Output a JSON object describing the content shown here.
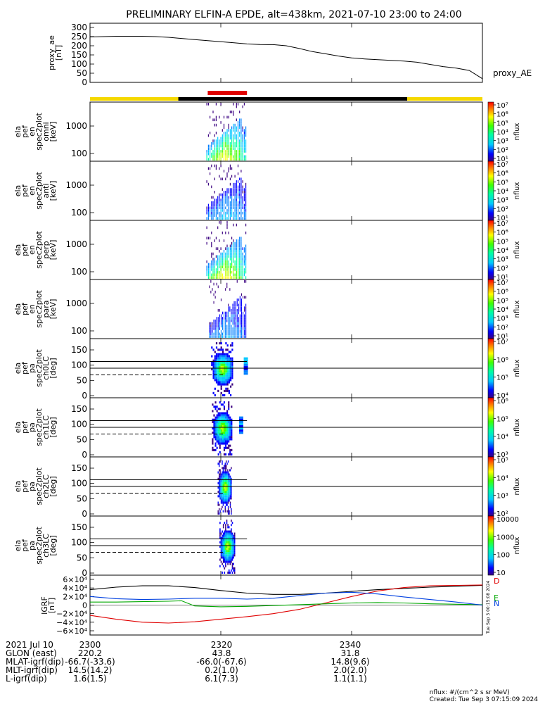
{
  "chart_data": {
    "type": "heatmap",
    "title": "PRELIMINARY ELFIN-A EPDE, alt=438km, 2021-07-10 23:00 to 24:00",
    "x_time_range_minutes": [
      0,
      60
    ],
    "xticks": [
      "2300",
      "2320",
      "2340"
    ],
    "xtick_minutes": [
      0,
      20,
      40
    ],
    "ae_panel": {
      "ylabel_lines": [
        "proxy_ae",
        "[nT]"
      ],
      "yticks": [
        0,
        50,
        100,
        150,
        200,
        250,
        300
      ],
      "ylim": [
        0,
        300
      ],
      "legend": "proxy_AE",
      "series_t": [
        0,
        2,
        4,
        6,
        8,
        10,
        12,
        14,
        16,
        18,
        20,
        22,
        24,
        26,
        28,
        30,
        32,
        34,
        36,
        38,
        40,
        42,
        44,
        46,
        48,
        50,
        52,
        54,
        56,
        58,
        60
      ],
      "series_v": [
        248,
        250,
        252,
        252,
        252,
        250,
        246,
        240,
        234,
        228,
        222,
        216,
        210,
        207,
        206,
        200,
        185,
        168,
        156,
        144,
        134,
        128,
        124,
        120,
        116,
        110,
        98,
        86,
        78,
        65,
        20
      ]
    },
    "status_bar": [
      {
        "from": 0,
        "to": 13.5,
        "color": "#f5d800"
      },
      {
        "from": 13.5,
        "to": 48.5,
        "color": "#000000"
      },
      {
        "from": 48.5,
        "to": 60,
        "color": "#f5d800"
      }
    ],
    "science_zone": {
      "from": 18,
      "to": 24,
      "color": "#e00000"
    },
    "energy_panels": [
      {
        "lines": [
          "ela",
          "pef",
          "en",
          "spec2plot",
          "omni",
          "[keV]"
        ],
        "yticks": [
          "1000",
          "100"
        ],
        "cb_ticks": [
          "10⁷",
          "10⁶",
          "10⁵",
          "10⁴",
          "10³",
          "10²",
          "10¹"
        ],
        "cb_label": "nflux",
        "t_from": 17.8,
        "t_to": 24,
        "peak": 1.0
      },
      {
        "lines": [
          "ela",
          "pef",
          "en",
          "spec2plot",
          "anti",
          "[keV]"
        ],
        "yticks": [
          "1000",
          "100"
        ],
        "cb_ticks": [
          "10⁷",
          "10⁶",
          "10⁵",
          "10⁴",
          "10³",
          "10²",
          "10¹"
        ],
        "cb_label": "nflux",
        "t_from": 17.8,
        "t_to": 24,
        "peak": 0.45
      },
      {
        "lines": [
          "ela",
          "pef",
          "en",
          "spec2plot",
          "perp",
          "[keV]"
        ],
        "yticks": [
          "1000",
          "100"
        ],
        "cb_ticks": [
          "10⁷",
          "10⁶",
          "10⁵",
          "10⁴",
          "10³",
          "10²",
          "10¹"
        ],
        "cb_label": "nflux",
        "t_from": 17.8,
        "t_to": 24,
        "peak": 1.0
      },
      {
        "lines": [
          "ela",
          "pef",
          "en",
          "spec2plot",
          "para",
          "[keV]"
        ],
        "yticks": [
          "1000",
          "100"
        ],
        "cb_ticks": [
          "10⁷",
          "10⁶",
          "10⁵",
          "10⁴",
          "10³",
          "10²",
          "10¹"
        ],
        "cb_label": "nflux",
        "t_from": 18.2,
        "t_to": 24,
        "peak": 0.4
      }
    ],
    "pa_panels": [
      {
        "lines": [
          "ela",
          "pef",
          "pa",
          "spec2plot",
          "ch0LC",
          "[deg]"
        ],
        "yticks": [
          "150",
          "100",
          "50",
          "0"
        ],
        "cb_ticks": [
          "10⁷",
          "10⁶",
          "10⁵",
          "10⁴"
        ],
        "cb_label": "nflux",
        "center_t": 20.2,
        "width_t": 1.4,
        "extra_t": 23.5
      },
      {
        "lines": [
          "ela",
          "pef",
          "pa",
          "spec2plot",
          "ch1LC",
          "[deg]"
        ],
        "yticks": [
          "150",
          "100",
          "50",
          "0"
        ],
        "cb_ticks": [
          "10⁶",
          "10⁵",
          "10⁴",
          "10³"
        ],
        "cb_label": "nflux",
        "center_t": 20.2,
        "width_t": 1.3,
        "extra_t": 22.8
      },
      {
        "lines": [
          "ela",
          "pef",
          "pa",
          "spec2plot",
          "ch2LC",
          "[deg]"
        ],
        "yticks": [
          "150",
          "100",
          "50",
          "0"
        ],
        "cb_ticks": [
          "10⁵",
          "10⁴",
          "10³",
          "10²"
        ],
        "cb_label": "nflux",
        "center_t": 20.6,
        "width_t": 0.9,
        "extra_t": 0
      },
      {
        "lines": [
          "ela",
          "pef",
          "pa",
          "spec2plot",
          "ch3LC",
          "[deg]"
        ],
        "yticks": [
          "150",
          "100",
          "50",
          "0"
        ],
        "cb_ticks": [
          "10000",
          "1000",
          "100",
          "10"
        ],
        "cb_label": "nflux",
        "center_t": 21.0,
        "width_t": 1.0,
        "extra_t": 0
      }
    ],
    "igrf_panel": {
      "ylabel_lines": [
        "IGRF",
        "[nT]"
      ],
      "yticks": [
        "6×10⁴",
        "4×10⁴",
        "2×10⁴",
        "0",
        "−2×10⁴",
        "−4×10⁴",
        "−6×10⁴"
      ],
      "ylim": [
        -60000,
        60000
      ],
      "legend": [
        "D",
        "E",
        "N"
      ],
      "side_note": "Tue Sep  3 00:15:08 2024",
      "series": [
        {
          "name": "total",
          "color": "#000000",
          "t": [
            0,
            4,
            8,
            12,
            16,
            20,
            24,
            28,
            32,
            36,
            40,
            44,
            48,
            52,
            56,
            60
          ],
          "v": [
            36000,
            42000,
            45000,
            45000,
            41000,
            34000,
            28000,
            25000,
            25000,
            28000,
            32000,
            36000,
            39000,
            42000,
            44000,
            46000
          ]
        },
        {
          "name": "D",
          "color": "#e00000",
          "t": [
            0,
            4,
            8,
            12,
            16,
            20,
            24,
            28,
            32,
            36,
            40,
            44,
            48,
            52,
            56,
            60
          ],
          "v": [
            -24000,
            -33000,
            -40000,
            -42000,
            -39000,
            -33000,
            -27000,
            -20000,
            -10000,
            5000,
            20000,
            33000,
            41000,
            45000,
            46000,
            47000
          ]
        },
        {
          "name": "E",
          "color": "#00a800",
          "t": [
            0,
            4,
            8,
            12,
            14,
            16,
            20,
            24,
            28,
            32,
            36,
            40,
            44,
            48,
            52,
            56,
            60
          ],
          "v": [
            7000,
            7000,
            8000,
            9000,
            10000,
            -2000,
            -4000,
            -3000,
            -1000,
            1000,
            3000,
            5000,
            6000,
            5000,
            3000,
            2000,
            1000
          ]
        },
        {
          "name": "N",
          "color": "#0040e0",
          "t": [
            0,
            4,
            8,
            12,
            16,
            20,
            24,
            28,
            32,
            36,
            40,
            44,
            48,
            52,
            56,
            60
          ],
          "v": [
            20000,
            15000,
            13000,
            14000,
            16000,
            16000,
            14000,
            16000,
            22000,
            28000,
            30000,
            26000,
            19000,
            13000,
            7000,
            0
          ]
        }
      ]
    },
    "footer": {
      "rows": [
        {
          "label": "2021 Jul 10",
          "cols": [
            "2300",
            "2320",
            "2340"
          ]
        },
        {
          "label": "GLON (east)",
          "cols": [
            "220.2",
            "43.8",
            "31.8"
          ]
        },
        {
          "label": "MLAT-igrf(dip)",
          "cols": [
            "-66.7(-33.6)",
            "-66.0(-67.6)",
            "14.8(9.6)"
          ]
        },
        {
          "label": "MLT-igrf(dip)",
          "cols": [
            "14.5(14.2)",
            "0.2(1.0)",
            "2.0(2.0)"
          ]
        },
        {
          "label": "L-igrf(dip)",
          "cols": [
            "1.6(1.5)",
            "6.1(7.3)",
            "1.1(1.1)"
          ]
        }
      ],
      "units_note": "nflux: #/(cm^2 s sr MeV)",
      "created_note": "Created: Tue Sep  3 07:15:09 2024"
    }
  }
}
